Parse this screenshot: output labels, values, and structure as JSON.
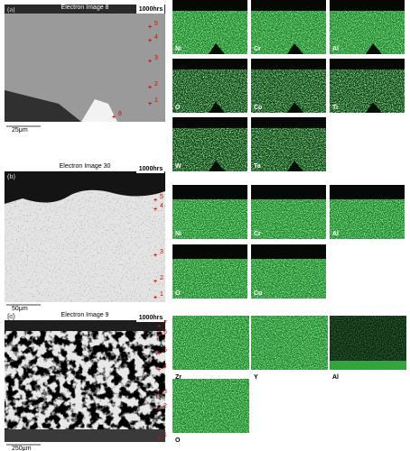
{
  "panels": [
    {
      "label": "(a)",
      "image_title": "Electron Image 8",
      "duration": "1000hrs",
      "scale_bar": "25μm",
      "points": [
        "1",
        "2",
        "3",
        "4",
        "5",
        "6"
      ],
      "maps": [
        "Ni",
        "Cr",
        "Al",
        "O",
        "Co",
        "Ti",
        "W",
        "Ta"
      ]
    },
    {
      "label": "(b)",
      "image_title": "Electron Image 30",
      "duration": "1000hrs",
      "scale_bar": "50μm",
      "points": [
        "1",
        "2",
        "3",
        "4",
        "5"
      ],
      "maps": [
        "Ni",
        "Cr",
        "Al",
        "O",
        "Co"
      ]
    },
    {
      "label": "(c)",
      "image_title": "Electron Image 9",
      "duration": "1000hrs",
      "scale_bar": "250μm",
      "points": [
        "1",
        "2",
        "3",
        "4",
        "5",
        "6",
        "7"
      ],
      "maps": [
        "Zr",
        "Y",
        "Al",
        "O"
      ]
    }
  ]
}
